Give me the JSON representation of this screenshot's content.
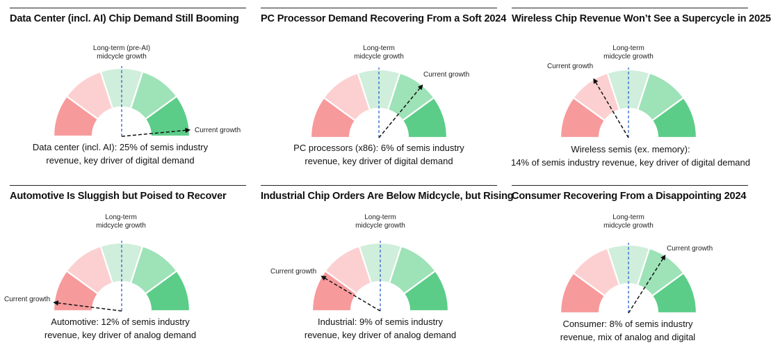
{
  "colors": {
    "segments": [
      "#f79a9c",
      "#fcd0d1",
      "#cfeedb",
      "#9ee2b7",
      "#5bcd88"
    ],
    "midline": "#3c6fd1",
    "arrow": "#111111",
    "rule": "#222222"
  },
  "chart_data": [
    {
      "type": "gauge",
      "title": "Data Center (incl. AI) Chip Demand Still Booming",
      "midline_label": [
        "Long-term (pre-AI)",
        "midcycle growth"
      ],
      "pointer_label": "Current growth",
      "pointer_position": 0.97,
      "caption": [
        "Data center (incl. AI): 25% of semis industry",
        "revenue, key driver of digital demand"
      ]
    },
    {
      "type": "gauge",
      "title": "PC Processor Demand Recovering From a Soft 2024",
      "midline_label": [
        "Long-term",
        "midcycle growth"
      ],
      "pointer_label": "Current growth",
      "pointer_position": 0.72,
      "caption": [
        "PC processors (x86): 6% of semis industry",
        "revenue, key driver of digital demand"
      ]
    },
    {
      "type": "gauge",
      "title": "Wireless Chip Revenue Won’t See a Supercycle in 2025",
      "midline_label": [
        "Long-term",
        "midcycle growth"
      ],
      "pointer_label": "Current growth",
      "pointer_position": 0.33,
      "caption": [
        "Wireless semis (ex. memory):",
        "14% of semis industry revenue, key driver of digital demand"
      ]
    },
    {
      "type": "gauge",
      "title": "Automotive Is Sluggish but Poised to Recover",
      "midline_label": [
        "Long-term",
        "midcycle growth"
      ],
      "pointer_label": "Current growth",
      "pointer_position": 0.04,
      "caption": [
        "Automotive: 12% of semis industry",
        "revenue, key driver of analog demand"
      ]
    },
    {
      "type": "gauge",
      "title": "Industrial Chip Orders Are Below Midcycle, but Rising",
      "midline_label": [
        "Long-term",
        "midcycle growth"
      ],
      "pointer_label": "Current growth",
      "pointer_position": 0.17,
      "caption": [
        "Industrial: 9% of semis industry",
        "revenue, key driver of analog demand"
      ]
    },
    {
      "type": "gauge",
      "title": "Consumer Recovering From a Disappointing 2024",
      "midline_label": [
        "Long-term",
        "midcycle growth"
      ],
      "pointer_label": "Current growth",
      "pointer_position": 0.68,
      "caption": [
        "Consumer: 8% of semis industry",
        "revenue, mix of analog and digital"
      ]
    }
  ]
}
